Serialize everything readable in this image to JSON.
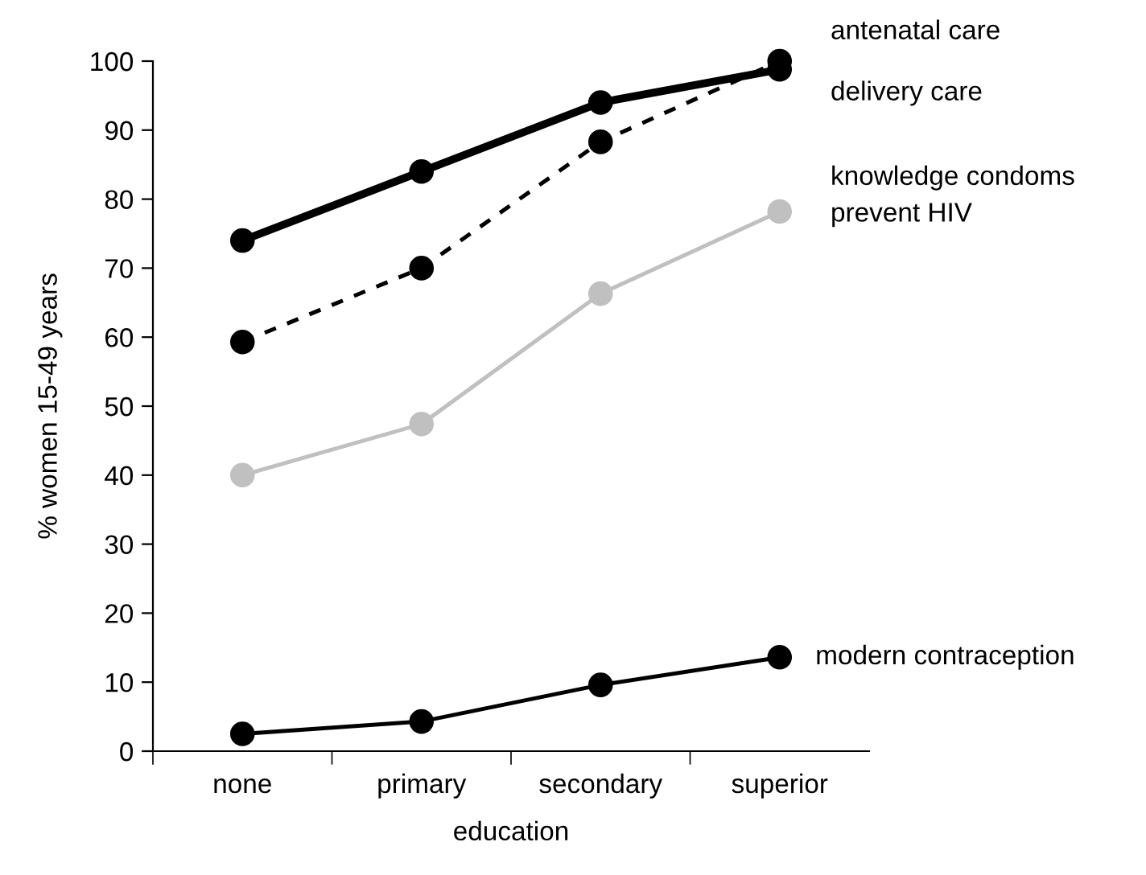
{
  "chart_data": {
    "type": "line",
    "xlabel": "education",
    "ylabel": "% women 15-49 years",
    "categories": [
      "none",
      "primary",
      "secondary",
      "superior"
    ],
    "series": [
      {
        "name": "antenatal care",
        "color": "#000000",
        "values": [
          74,
          84,
          94,
          98.8
        ],
        "line_style": "solid"
      },
      {
        "name": "delivery care",
        "color": "#000000",
        "values": [
          59.3,
          70,
          88.3,
          100
        ],
        "line_style": "dashed"
      },
      {
        "name": "knowledge condoms\nprevent HIV",
        "color": "#c0c0c0",
        "values": [
          40,
          47.4,
          66.3,
          78.2
        ],
        "line_style": "solid"
      },
      {
        "name": "modern contraception",
        "color": "#000000",
        "values": [
          2.5,
          4.3,
          9.6,
          13.6
        ],
        "line_style": "solid"
      }
    ],
    "ylim": [
      0,
      100
    ],
    "yticks": [
      0,
      10,
      20,
      30,
      40,
      50,
      60,
      70,
      80,
      90,
      100
    ],
    "marker": "circle",
    "grid": false,
    "legend": false
  }
}
